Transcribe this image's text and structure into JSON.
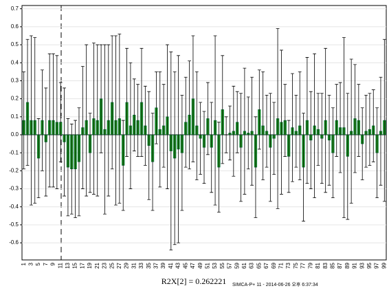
{
  "chart_data": {
    "type": "bar",
    "annotation": "R2X[2] = 0.262221",
    "footer": "SIMCA-P+ 11 - 2014-06-26 오후 6:37:34",
    "categories": [
      1,
      null,
      3,
      null,
      5,
      null,
      7,
      null,
      9,
      null,
      11,
      null,
      13,
      null,
      15,
      null,
      17,
      null,
      19,
      null,
      21,
      null,
      23,
      null,
      25,
      null,
      27,
      null,
      29,
      null,
      31,
      null,
      33,
      null,
      35,
      null,
      37,
      null,
      39,
      null,
      41,
      null,
      43,
      null,
      45,
      null,
      47,
      null,
      49,
      null,
      51,
      null,
      53,
      null,
      55,
      null,
      57,
      null,
      59,
      null,
      61,
      null,
      63,
      null,
      65,
      null,
      67,
      null,
      69,
      null,
      71,
      null,
      73,
      null,
      75,
      null,
      77,
      null,
      79,
      null,
      81,
      null,
      83,
      null,
      85,
      null,
      87,
      null,
      89,
      null,
      91,
      null,
      93,
      null,
      95,
      null,
      97,
      null,
      99
    ],
    "values": [
      0.08,
      0.18,
      0.08,
      0.08,
      -0.13,
      0.08,
      -0.04,
      0.08,
      0.08,
      0.07,
      0.07,
      -0.04,
      -0.18,
      -0.19,
      -0.19,
      -0.15,
      0.04,
      0.08,
      -0.1,
      0.09,
      0.08,
      0.2,
      0.03,
      0.08,
      0.18,
      0.08,
      0.09,
      -0.17,
      0.18,
      0.05,
      0.11,
      0.08,
      0.18,
      0.05,
      -0.06,
      -0.15,
      0.15,
      0.03,
      0.05,
      0.1,
      -0.09,
      -0.13,
      -0.08,
      -0.1,
      0.07,
      0.11,
      0.2,
      0.05,
      -0.02,
      -0.07,
      0.09,
      -0.07,
      0.08,
      -0.18,
      0.14,
      0,
      0.01,
      0.02,
      0.07,
      -0.07,
      0.02,
      0.01,
      0.02,
      -0.18,
      0.14,
      0.05,
      0.02,
      -0.07,
      -0.02,
      0.09,
      0.07,
      0.08,
      -0.12,
      0.04,
      0.02,
      0.05,
      -0.18,
      0.08,
      -0.03,
      0.05,
      0.03,
      -0.02,
      0.08,
      -0.03,
      -0.1,
      0.08,
      0.04,
      0.04,
      -0.12,
      0.02,
      0.09,
      0.08,
      -0.05,
      0.02,
      0.03,
      0.05,
      -0.1,
      0.02,
      0.08
    ],
    "errors": [
      0.27,
      0.35,
      0.47,
      0.46,
      0.22,
      0.28,
      0.3,
      0.37,
      0.37,
      0.37,
      0.22,
      0.3,
      0.27,
      0.25,
      0.27,
      0.3,
      0.34,
      0.42,
      0.22,
      0.42,
      0.42,
      0.3,
      0.47,
      0.42,
      0.37,
      0.47,
      0.47,
      0.25,
      0.3,
      0.35,
      0.2,
      0.2,
      0.3,
      0.22,
      0.3,
      0.27,
      0.2,
      0.32,
      0.23,
      0.4,
      0.55,
      0.48,
      0.52,
      0.32,
      0.25,
      0.3,
      0.35,
      0.3,
      0.2,
      0.2,
      0.2,
      0.25,
      0.47,
      0.25,
      0.3,
      0.1,
      0.15,
      0.25,
      0.17,
      0.3,
      0.35,
      0.2,
      0.3,
      0.28,
      0.22,
      0.3,
      0.2,
      0.3,
      0.2,
      0.5,
      0.4,
      0.2,
      0.2,
      0.3,
      0.2,
      0.3,
      0.3,
      0.35,
      0.27,
      0.4,
      0.2,
      0.25,
      0.4,
      0.25,
      0.25,
      0.2,
      0.25,
      0.5,
      0.35,
      0.4,
      0.3,
      0.2,
      0.2,
      0.2,
      0.2,
      0.2,
      0.25,
      0.3,
      0.45
    ],
    "color": "#22a022",
    "ylim": [
      -0.695,
      0.718
    ],
    "yticks": [
      -0.6,
      -0.5,
      -0.4,
      -0.3,
      -0.2,
      -0.1,
      {
        "value": 0,
        "label": "0.0"
      },
      0.1,
      0.2,
      0.3,
      0.4,
      0.5,
      0.6,
      0.7
    ],
    "grid": true
  }
}
